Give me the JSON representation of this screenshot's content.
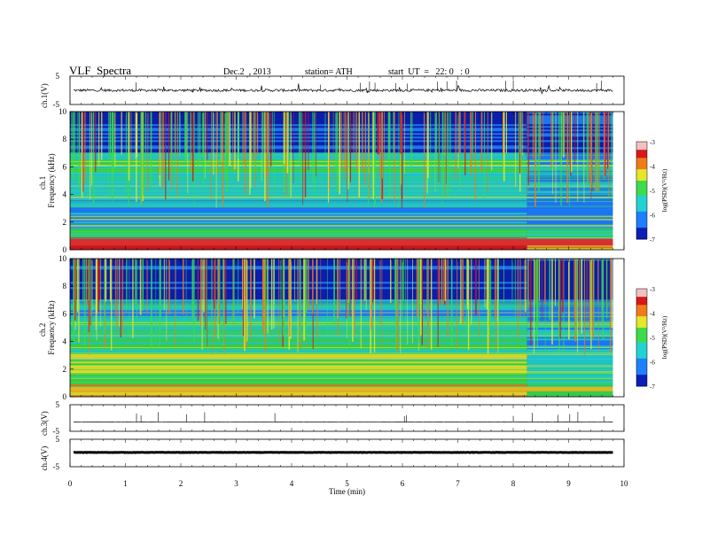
{
  "header": {
    "title": "VLF  Spectra",
    "date": "Dec.2  , 2013",
    "station": "station= ATH",
    "start": "start  UT  =   22: 0   : 0"
  },
  "colorbar": {
    "ticks": [
      "-3",
      "-4",
      "-5",
      "-6",
      "-7"
    ],
    "label": "log(PSD)(V²/Hz)"
  },
  "chart_data": [
    {
      "type": "line",
      "name_label": "ch.1(V)",
      "ylim": [
        -5,
        5
      ],
      "y_ticks": [
        "5",
        "-5"
      ],
      "baseline": 0,
      "noise": "high"
    },
    {
      "type": "heatmap",
      "name_label": "ch.1",
      "ylabel": "Frequency  (kHz)",
      "ylim": [
        0,
        10
      ],
      "y_ticks": [
        "0",
        "2",
        "4",
        "6",
        "8",
        "10"
      ],
      "clim": [
        -7,
        -3
      ],
      "change_time_min": 8.25,
      "data_end_min": 9.8
    },
    {
      "type": "heatmap",
      "name_label": "ch.2",
      "ylabel": "Frequency  (kHz)",
      "ylim": [
        0,
        10
      ],
      "y_ticks": [
        "0",
        "2",
        "4",
        "6",
        "8",
        "10"
      ],
      "clim": [
        -7,
        -3
      ],
      "change_time_min": 8.25,
      "data_end_min": 9.8
    },
    {
      "type": "line",
      "name_label": "ch.3(V)",
      "ylim": [
        -5,
        5
      ],
      "y_ticks": [
        "5",
        "-5"
      ],
      "baseline": -1.5,
      "noise": "low"
    },
    {
      "type": "line",
      "name_label": "ch.4(V)",
      "ylim": [
        -5,
        5
      ],
      "y_ticks": [
        "5",
        "-5"
      ],
      "baseline": 0.2,
      "noise": "thick"
    }
  ],
  "x_axis": {
    "label": "Time  (min)",
    "xlim": [
      0,
      10
    ],
    "ticks": [
      "0",
      "1",
      "2",
      "3",
      "4",
      "5",
      "6",
      "7",
      "8",
      "9",
      "10"
    ]
  }
}
